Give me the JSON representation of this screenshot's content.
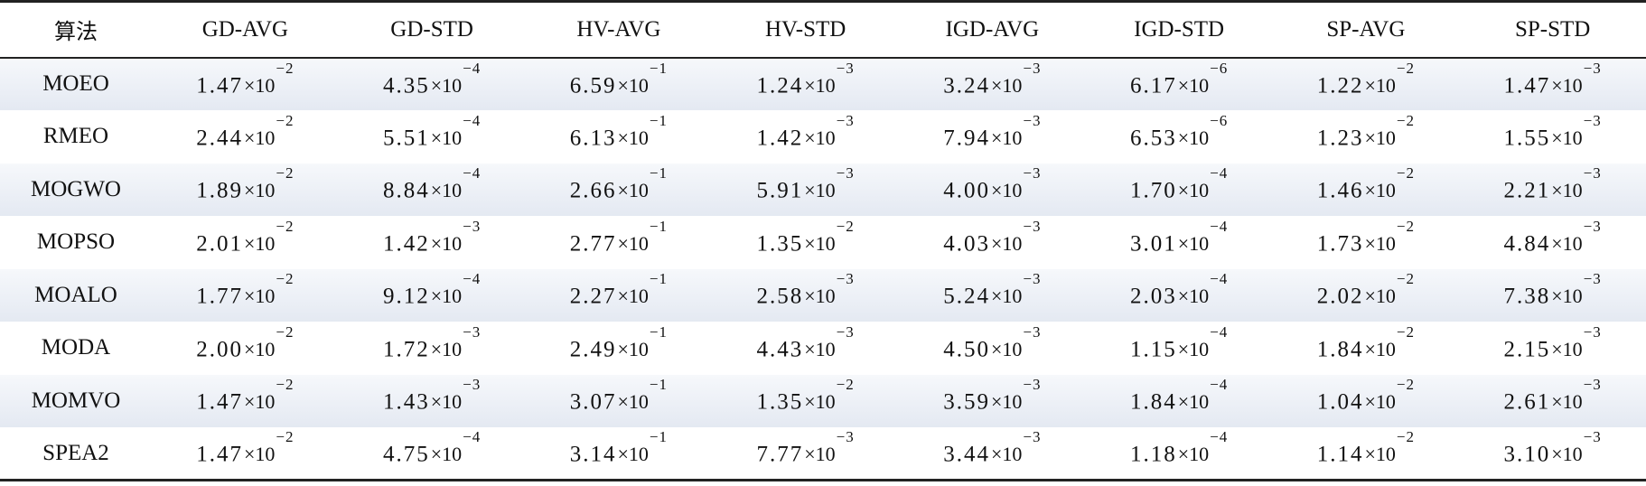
{
  "table": {
    "headers": [
      "算法",
      "GD-AVG",
      "GD-STD",
      "HV-AVG",
      "HV-STD",
      "IGD-AVG",
      "IGD-STD",
      "SP-AVG",
      "SP-STD"
    ],
    "times_symbol": "×10",
    "rows": [
      {
        "algorithm": "MOEO",
        "cells": [
          {
            "m": "1.47",
            "e": "−2"
          },
          {
            "m": "4.35",
            "e": "−4"
          },
          {
            "m": "6.59",
            "e": "−1"
          },
          {
            "m": "1.24",
            "e": "−3"
          },
          {
            "m": "3.24",
            "e": "−3"
          },
          {
            "m": "6.17",
            "e": "−6"
          },
          {
            "m": "1.22",
            "e": "−2"
          },
          {
            "m": "1.47",
            "e": "−3"
          }
        ]
      },
      {
        "algorithm": "RMEO",
        "cells": [
          {
            "m": "2.44",
            "e": "−2"
          },
          {
            "m": "5.51",
            "e": "−4"
          },
          {
            "m": "6.13",
            "e": "−1"
          },
          {
            "m": "1.42",
            "e": "−3"
          },
          {
            "m": "7.94",
            "e": "−3"
          },
          {
            "m": "6.53",
            "e": "−6"
          },
          {
            "m": "1.23",
            "e": "−2"
          },
          {
            "m": "1.55",
            "e": "−3"
          }
        ]
      },
      {
        "algorithm": "MOGWO",
        "cells": [
          {
            "m": "1.89",
            "e": "−2"
          },
          {
            "m": "8.84",
            "e": "−4"
          },
          {
            "m": "2.66",
            "e": "−1"
          },
          {
            "m": "5.91",
            "e": "−3"
          },
          {
            "m": "4.00",
            "e": "−3"
          },
          {
            "m": "1.70",
            "e": "−4"
          },
          {
            "m": "1.46",
            "e": "−2"
          },
          {
            "m": "2.21",
            "e": "−3"
          }
        ]
      },
      {
        "algorithm": "MOPSO",
        "cells": [
          {
            "m": "2.01",
            "e": "−2"
          },
          {
            "m": "1.42",
            "e": "−3"
          },
          {
            "m": "2.77",
            "e": "−1"
          },
          {
            "m": "1.35",
            "e": "−2"
          },
          {
            "m": "4.03",
            "e": "−3"
          },
          {
            "m": "3.01",
            "e": "−4"
          },
          {
            "m": "1.73",
            "e": "−2"
          },
          {
            "m": "4.84",
            "e": "−3"
          }
        ]
      },
      {
        "algorithm": "MOALO",
        "cells": [
          {
            "m": "1.77",
            "e": "−2"
          },
          {
            "m": "9.12",
            "e": "−4"
          },
          {
            "m": "2.27",
            "e": "−1"
          },
          {
            "m": "2.58",
            "e": "−3"
          },
          {
            "m": "5.24",
            "e": "−3"
          },
          {
            "m": "2.03",
            "e": "−4"
          },
          {
            "m": "2.02",
            "e": "−2"
          },
          {
            "m": "7.38",
            "e": "−3"
          }
        ]
      },
      {
        "algorithm": "MODA",
        "cells": [
          {
            "m": "2.00",
            "e": "−2"
          },
          {
            "m": "1.72",
            "e": "−3"
          },
          {
            "m": "2.49",
            "e": "−1"
          },
          {
            "m": "4.43",
            "e": "−3"
          },
          {
            "m": "4.50",
            "e": "−3"
          },
          {
            "m": "1.15",
            "e": "−4"
          },
          {
            "m": "1.84",
            "e": "−2"
          },
          {
            "m": "2.15",
            "e": "−3"
          }
        ]
      },
      {
        "algorithm": "MOMVO",
        "cells": [
          {
            "m": "1.47",
            "e": "−2"
          },
          {
            "m": "1.43",
            "e": "−3"
          },
          {
            "m": "3.07",
            "e": "−1"
          },
          {
            "m": "1.35",
            "e": "−2"
          },
          {
            "m": "3.59",
            "e": "−3"
          },
          {
            "m": "1.84",
            "e": "−4"
          },
          {
            "m": "1.04",
            "e": "−2"
          },
          {
            "m": "2.61",
            "e": "−3"
          }
        ]
      },
      {
        "algorithm": "SPEA2",
        "cells": [
          {
            "m": "1.47",
            "e": "−2"
          },
          {
            "m": "4.75",
            "e": "−4"
          },
          {
            "m": "3.14",
            "e": "−1"
          },
          {
            "m": "7.77",
            "e": "−3"
          },
          {
            "m": "3.44",
            "e": "−3"
          },
          {
            "m": "1.18",
            "e": "−4"
          },
          {
            "m": "1.14",
            "e": "−2"
          },
          {
            "m": "3.10",
            "e": "−3"
          }
        ]
      }
    ]
  }
}
